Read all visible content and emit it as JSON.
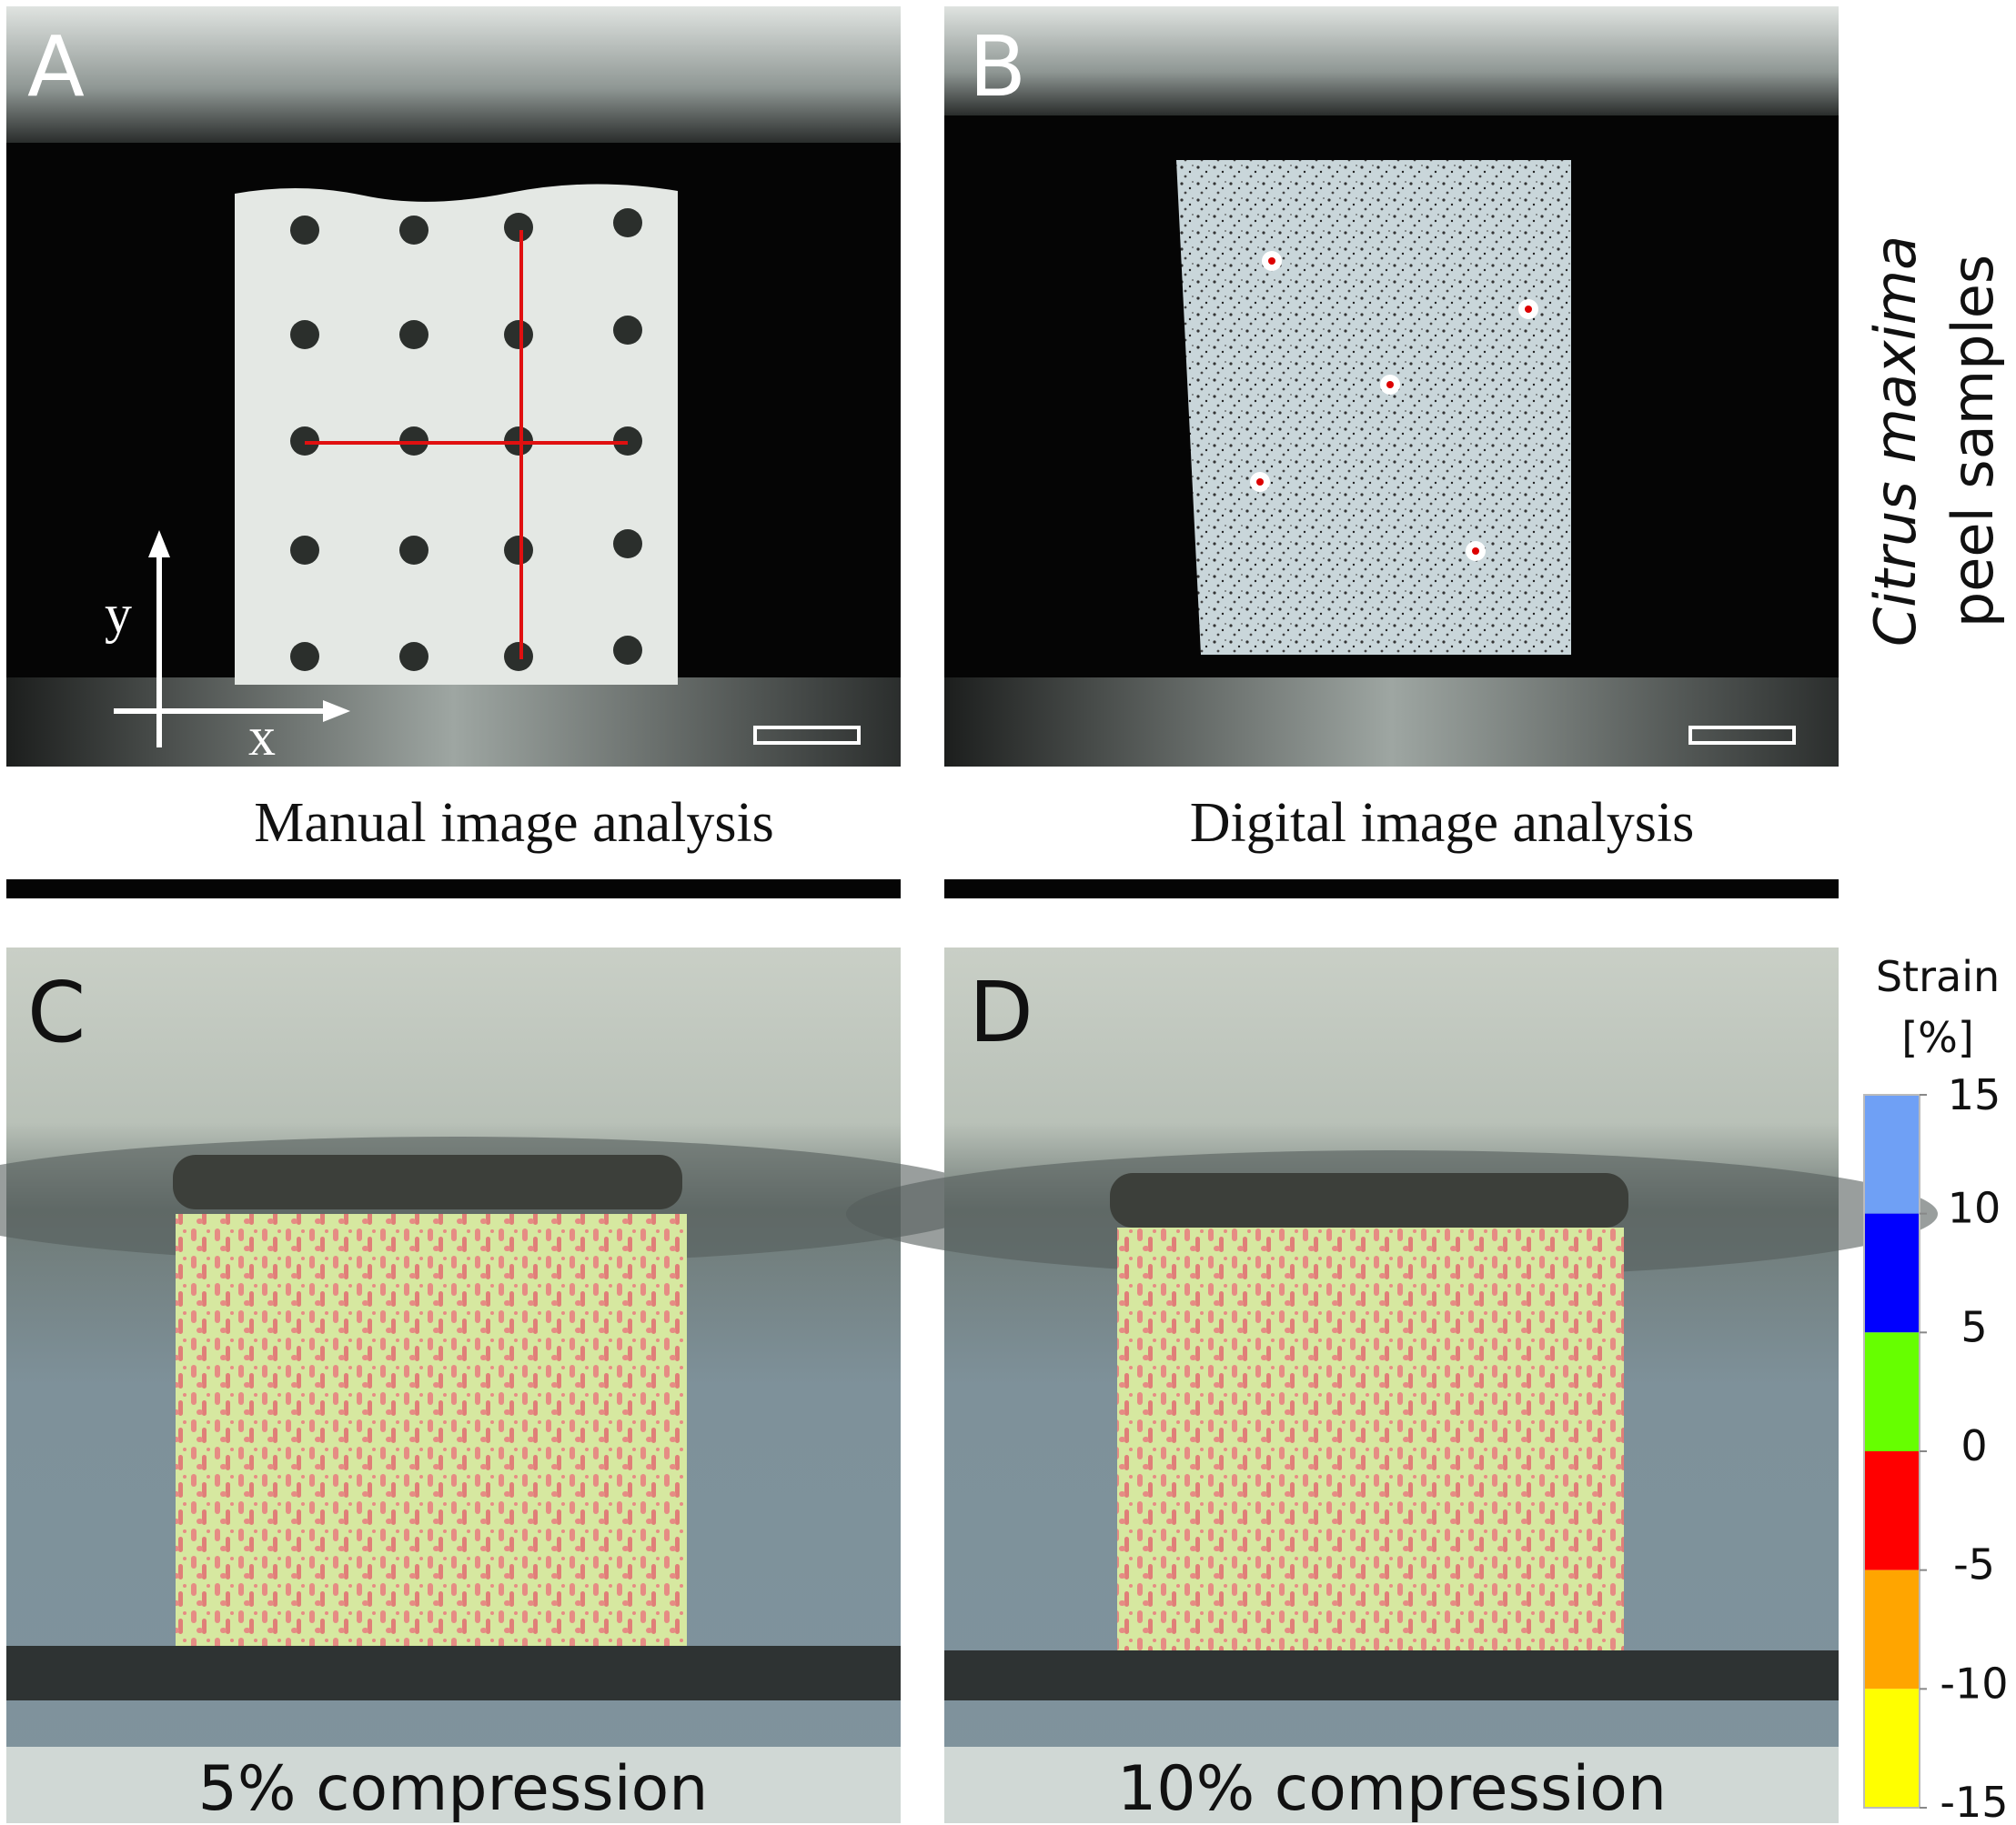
{
  "panels": [
    {
      "letter": "A",
      "caption": "Manual image analysis",
      "axis_labels": {
        "x": "x",
        "y": "y"
      }
    },
    {
      "letter": "B",
      "caption": "Digital image analysis"
    },
    {
      "letter": "C",
      "caption": "5% compression"
    },
    {
      "letter": "D",
      "caption": "10% compression"
    }
  ],
  "side_label": {
    "species": "Citrus maxima",
    "text": "peel samples"
  },
  "colorbar": {
    "title": "Strain",
    "unit": "[%]",
    "ticks": [
      15,
      10,
      5,
      0,
      -5,
      -10,
      -15
    ],
    "colors": [
      "#6fa0f5",
      "#0000ff",
      "#66ff00",
      "#ff0000",
      "#ffa500",
      "#ffff00"
    ]
  }
}
